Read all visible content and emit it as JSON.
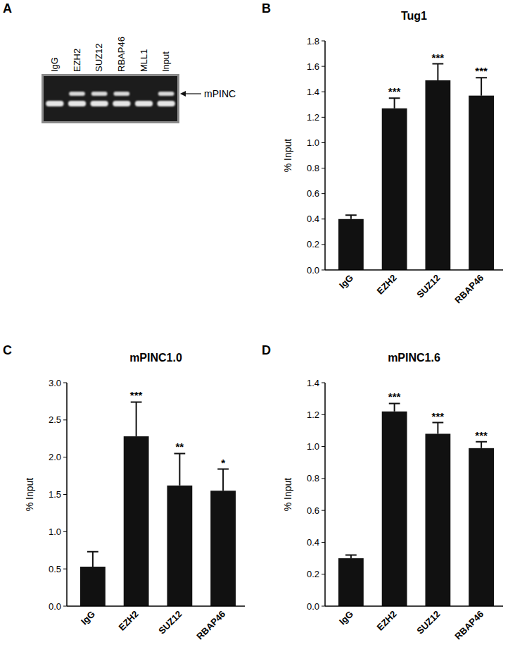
{
  "gel": {
    "panel": "A",
    "lanes": [
      "IgG",
      "EZH2",
      "SUZ12",
      "RBAP46",
      "MLL1",
      "Input"
    ],
    "band_label": "mPINC",
    "band_present": [
      0,
      1,
      1,
      1,
      0,
      1
    ],
    "lower_band_present": [
      1,
      1,
      1,
      1,
      1,
      1
    ]
  },
  "chart_data": [
    {
      "type": "bar",
      "panel": "B",
      "title": "Tug1",
      "y_label": "% Input",
      "categories": [
        "IgG",
        "EZH2",
        "SUZ12",
        "RBAP46"
      ],
      "values": [
        0.4,
        1.27,
        1.49,
        1.37
      ],
      "errors": [
        0.03,
        0.08,
        0.13,
        0.14
      ],
      "annotations": [
        null,
        "***",
        "***",
        "***"
      ],
      "color": "#111111",
      "ylim": [
        0,
        1.8
      ],
      "yticks": [
        {
          "value": 0,
          "label": "0.0"
        },
        {
          "value": 0.2,
          "label": "0.2"
        },
        {
          "value": 0.4,
          "label": "0.4"
        },
        {
          "value": 0.6,
          "label": "0.6"
        },
        {
          "value": 0.8,
          "label": "0.8"
        },
        {
          "value": 1.0,
          "label": "1.0"
        },
        {
          "value": 1.2,
          "label": "1.2"
        },
        {
          "value": 1.4,
          "label": "1.4"
        },
        {
          "value": 1.6,
          "label": "1.6"
        },
        {
          "value": 1.8,
          "label": "1.8"
        }
      ],
      "grid": false
    },
    {
      "type": "bar",
      "panel": "C",
      "title": "mPINC1.0",
      "y_label": "% Input",
      "categories": [
        "IgG",
        "EZH2",
        "SUZ12",
        "RBAP46"
      ],
      "values": [
        0.53,
        2.28,
        1.62,
        1.55
      ],
      "errors": [
        0.2,
        0.46,
        0.43,
        0.29
      ],
      "annotations": [
        null,
        "***",
        "**",
        "*"
      ],
      "color": "#111111",
      "ylim": [
        0,
        3.0
      ],
      "yticks": [
        {
          "value": 0,
          "label": "0.0"
        },
        {
          "value": 0.5,
          "label": "0.5"
        },
        {
          "value": 1.0,
          "label": "1.0"
        },
        {
          "value": 1.5,
          "label": "1.5"
        },
        {
          "value": 2.0,
          "label": "2.0"
        },
        {
          "value": 2.5,
          "label": "2.5"
        },
        {
          "value": 3.0,
          "label": "3.0"
        }
      ],
      "grid": false
    },
    {
      "type": "bar",
      "panel": "D",
      "title": "mPINC1.6",
      "y_label": "% Input",
      "categories": [
        "IgG",
        "EZH2",
        "SUZ12",
        "RBAP46"
      ],
      "values": [
        0.3,
        1.22,
        1.08,
        0.99
      ],
      "errors": [
        0.02,
        0.05,
        0.07,
        0.04
      ],
      "annotations": [
        null,
        "***",
        "***",
        "***"
      ],
      "color": "#111111",
      "ylim": [
        0,
        1.4
      ],
      "yticks": [
        {
          "value": 0,
          "label": "0.0"
        },
        {
          "value": 0.2,
          "label": "0.2"
        },
        {
          "value": 0.4,
          "label": "0.4"
        },
        {
          "value": 0.6,
          "label": "0.6"
        },
        {
          "value": 0.8,
          "label": "0.8"
        },
        {
          "value": 1.0,
          "label": "1.0"
        },
        {
          "value": 1.2,
          "label": "1.2"
        },
        {
          "value": 1.4,
          "label": "1.4"
        }
      ],
      "grid": false
    }
  ]
}
